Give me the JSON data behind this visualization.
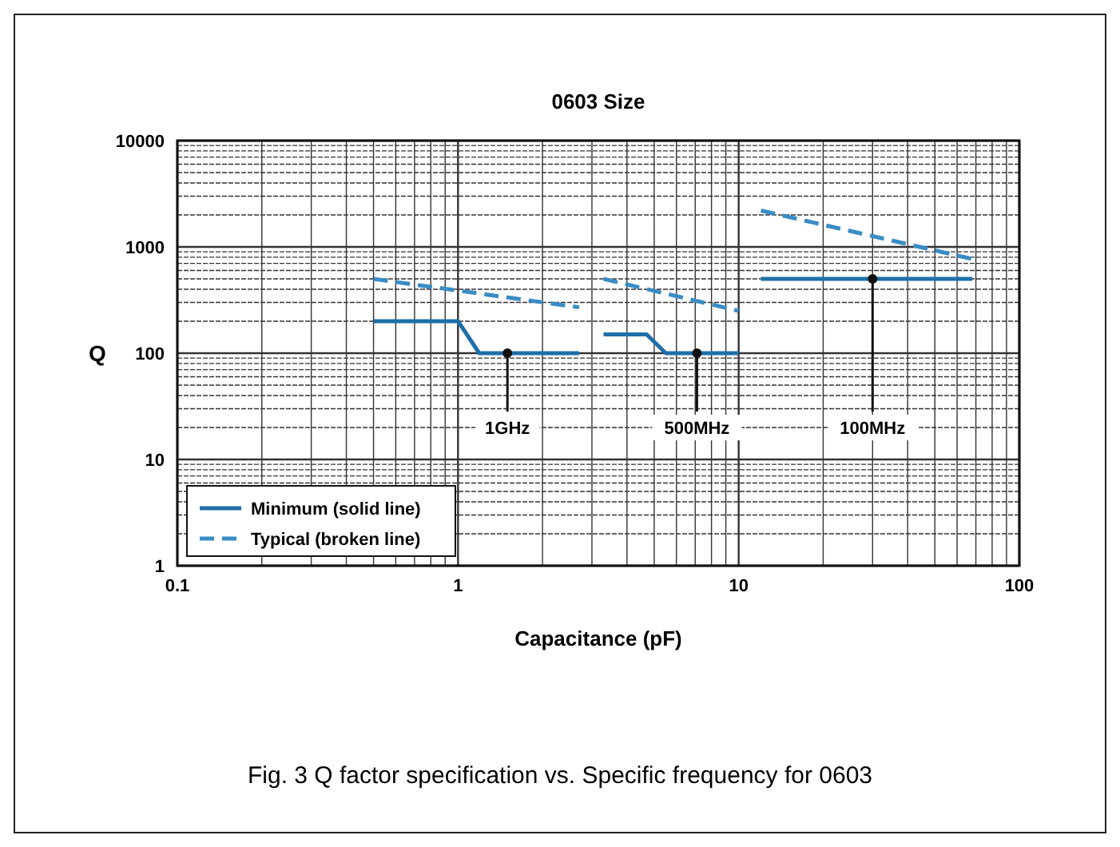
{
  "chart_data": {
    "type": "line",
    "title": "0603 Size",
    "xlabel": "Capacitance (pF)",
    "ylabel": "Q",
    "log": "xy",
    "grid": true,
    "legend": "bottom left",
    "xlim": [
      0.1,
      100
    ],
    "xticks": [
      0.1,
      1,
      10,
      100
    ],
    "ylim": [
      1,
      10000
    ],
    "yticks": [
      1,
      10,
      100,
      1000,
      10000
    ],
    "series": [
      {
        "name": "Minimum (solid line)",
        "color": "#1f6fa8",
        "line_style": "solid",
        "x": [
          0.5,
          1,
          1.19,
          2.7,
          3,
          3.3,
          4.7,
          5.5,
          10,
          11,
          12,
          68
        ],
        "values": [
          200,
          200,
          100,
          100,
          null,
          150,
          150,
          100,
          100,
          null,
          500,
          500
        ]
      },
      {
        "name": "Typical (broken line)",
        "color": "#3a8cc4",
        "line_style": "dashed",
        "x": [
          0.5,
          2.7,
          3,
          3.3,
          10,
          11,
          12,
          68
        ],
        "values": [
          500,
          270,
          null,
          500,
          250,
          null,
          2200,
          770
        ]
      }
    ],
    "annotations": [
      {
        "text": "1GHz",
        "x": 1.5,
        "y": 100
      },
      {
        "text": "500MHz",
        "x": 7.1,
        "y": 100
      },
      {
        "text": "100MHz",
        "x": 30,
        "y": 500
      },
      "Fig. 3 Q factor specification vs. Specific frequency for 0603"
    ]
  }
}
